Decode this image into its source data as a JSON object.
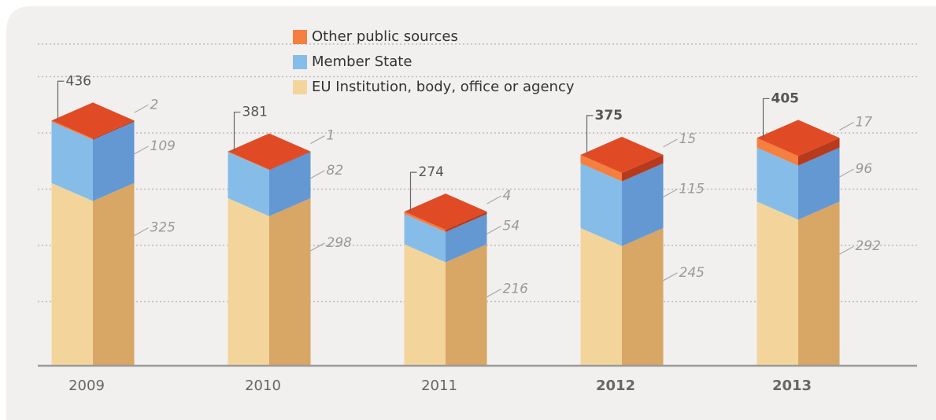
{
  "chart_data": {
    "type": "bar3d_stacked",
    "categories": [
      "2009",
      "2010",
      "2011",
      "2012",
      "2013"
    ],
    "bold": [
      false,
      false,
      false,
      true,
      true
    ],
    "totals": [
      436,
      381,
      274,
      375,
      405
    ],
    "series": [
      {
        "name": "EU Institution, body, office or agency",
        "color": "#f3d59c",
        "side_color": "#d8a665",
        "values": [
          325,
          298,
          216,
          245,
          292
        ]
      },
      {
        "name": "Member State",
        "color": "#86bde8",
        "side_color": "#6398d3",
        "values": [
          109,
          82,
          54,
          115,
          96
        ]
      },
      {
        "name": "Other public sources",
        "color": "#f47f3f",
        "side_color": "#b83a1c",
        "values": [
          2,
          1,
          4,
          15,
          17
        ]
      }
    ],
    "top_color": "#e04b26",
    "ylim": [
      0,
      500
    ],
    "yticks": [
      100,
      200,
      300,
      400,
      500
    ],
    "grid": true
  }
}
